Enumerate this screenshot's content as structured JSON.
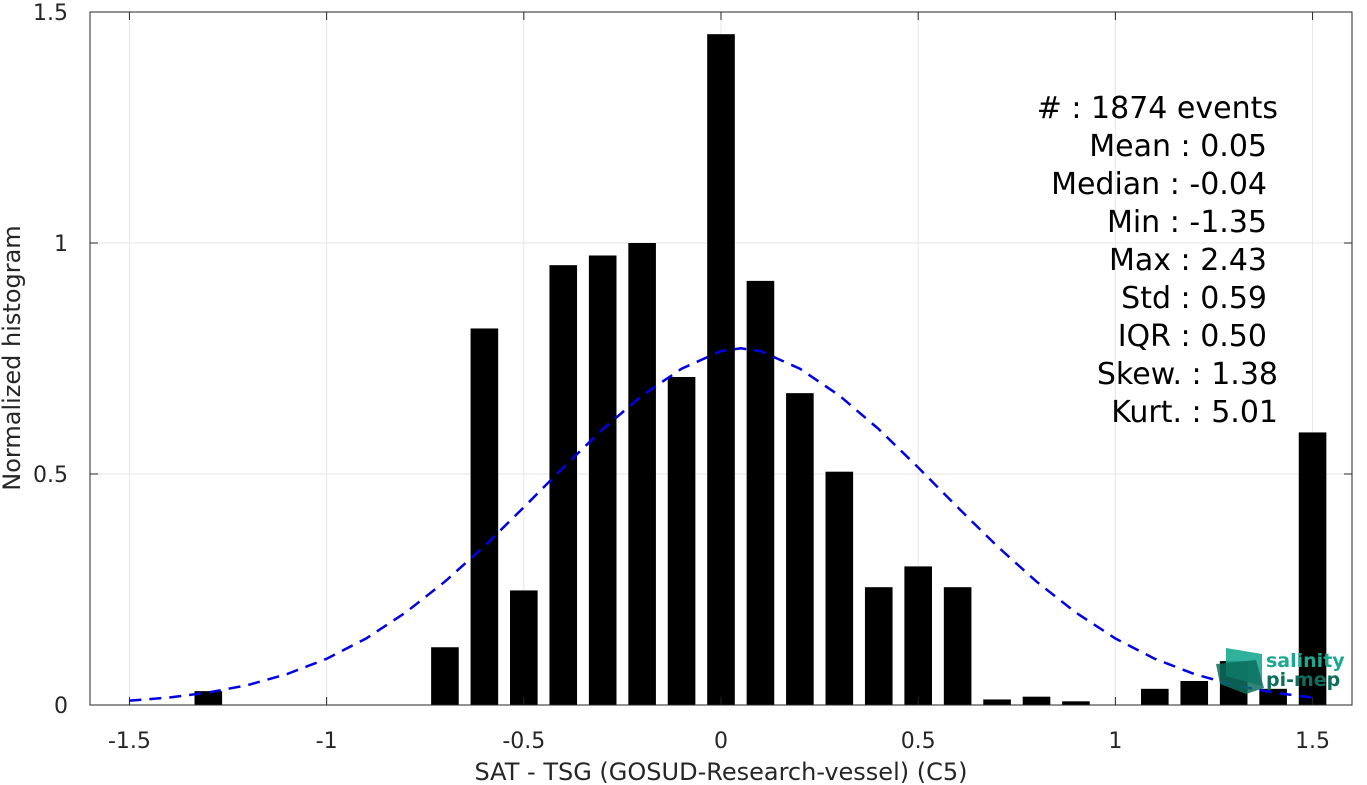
{
  "chart_data": {
    "type": "bar",
    "xlabel": "SAT - TSG (GOSUD-Research-vessel) (C5)",
    "ylabel": "Normalized histogram",
    "xlim": [
      -1.6,
      1.6
    ],
    "ylim": [
      0,
      1.5
    ],
    "grid": true,
    "x_ticks": [
      -1.5,
      -1,
      -0.5,
      0,
      0.5,
      1,
      1.5
    ],
    "x_tick_labels": [
      "-1.5",
      "-1",
      "-0.5",
      "0",
      "0.5",
      "1",
      "1.5"
    ],
    "y_ticks": [
      0,
      0.5,
      1,
      1.5
    ],
    "y_tick_labels": [
      "0",
      "0.5",
      "1",
      "1.5"
    ],
    "bar_width": 0.07,
    "bars": [
      {
        "x": -1.3,
        "y": 0.03
      },
      {
        "x": -0.7,
        "y": 0.125
      },
      {
        "x": -0.6,
        "y": 0.815
      },
      {
        "x": -0.5,
        "y": 0.248
      },
      {
        "x": -0.4,
        "y": 0.952
      },
      {
        "x": -0.3,
        "y": 0.973
      },
      {
        "x": -0.2,
        "y": 1.0
      },
      {
        "x": -0.1,
        "y": 0.71
      },
      {
        "x": 0.0,
        "y": 1.452
      },
      {
        "x": 0.1,
        "y": 0.918
      },
      {
        "x": 0.2,
        "y": 0.675
      },
      {
        "x": 0.3,
        "y": 0.505
      },
      {
        "x": 0.4,
        "y": 0.255
      },
      {
        "x": 0.5,
        "y": 0.3
      },
      {
        "x": 0.6,
        "y": 0.255
      },
      {
        "x": 0.7,
        "y": 0.012
      },
      {
        "x": 0.8,
        "y": 0.018
      },
      {
        "x": 0.9,
        "y": 0.008
      },
      {
        "x": 1.1,
        "y": 0.035
      },
      {
        "x": 1.2,
        "y": 0.052
      },
      {
        "x": 1.3,
        "y": 0.095
      },
      {
        "x": 1.4,
        "y": 0.035
      },
      {
        "x": 1.5,
        "y": 0.59
      }
    ],
    "fit_curve": {
      "style": "dashed",
      "color": "#0000e6",
      "x": [
        -1.5,
        -1.4,
        -1.3,
        -1.2,
        -1.1,
        -1.0,
        -0.9,
        -0.8,
        -0.7,
        -0.6,
        -0.5,
        -0.4,
        -0.3,
        -0.2,
        -0.1,
        0.0,
        0.05,
        0.1,
        0.2,
        0.3,
        0.4,
        0.5,
        0.6,
        0.7,
        0.8,
        0.9,
        1.0,
        1.1,
        1.2,
        1.3,
        1.4,
        1.5
      ],
      "y": [
        0.0095,
        0.016,
        0.027,
        0.043,
        0.067,
        0.1,
        0.144,
        0.2,
        0.267,
        0.344,
        0.428,
        0.514,
        0.597,
        0.67,
        0.728,
        0.766,
        0.772,
        0.766,
        0.728,
        0.67,
        0.597,
        0.514,
        0.428,
        0.344,
        0.267,
        0.2,
        0.144,
        0.1,
        0.067,
        0.043,
        0.027,
        0.016
      ]
    },
    "stats": [
      "#  : 1874 events",
      "Mean : 0.05",
      "Median : -0.04",
      "Min : -1.35",
      "Max : 2.43",
      "Std : 0.59",
      "IQR : 0.50",
      "Skew. : 1.38",
      "Kurt. : 5.01"
    ]
  },
  "logo": {
    "line1": "salinity",
    "line2": "pi-mep",
    "color": "#1aa890",
    "dark_color": "#0d6e5e"
  }
}
